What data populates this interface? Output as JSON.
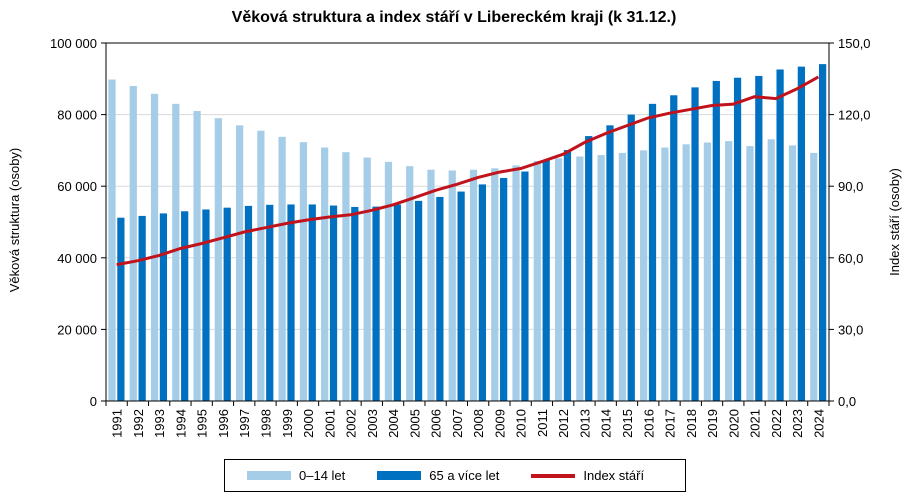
{
  "chart_data": {
    "type": "bar",
    "title": "Věková struktura a index stáří v Libereckém kraji (k 31.12.)",
    "ylabel": "Věková struktura (osoby)",
    "y2label": "Index stáří (osoby)",
    "ylim": [
      0,
      100000
    ],
    "y2lim": [
      0,
      150
    ],
    "yticks": [
      "0",
      "20 000",
      "40 000",
      "60 000",
      "80 000",
      "100 000"
    ],
    "y2ticks": [
      "0,0",
      "30,0",
      "60,0",
      "90,0",
      "120,0",
      "150,0"
    ],
    "categories": [
      "1991",
      "1992",
      "1993",
      "1994",
      "1995",
      "1996",
      "1997",
      "1998",
      "1999",
      "2000",
      "2001",
      "2002",
      "2003",
      "2004",
      "2005",
      "2006",
      "2007",
      "2008",
      "2009",
      "2010",
      "2011",
      "2012",
      "2013",
      "2014",
      "2015",
      "2016",
      "2017",
      "2018",
      "2019",
      "2020",
      "2021",
      "2022",
      "2023",
      "2024"
    ],
    "series": [
      {
        "name": "0–14 let",
        "type": "bar",
        "axis": "left",
        "color": "#a6cde7",
        "values": [
          89800,
          88000,
          85800,
          83000,
          81000,
          79000,
          77000,
          75500,
          73800,
          72300,
          70800,
          69500,
          68000,
          66800,
          65600,
          64600,
          64400,
          64600,
          65000,
          65800,
          67000,
          67800,
          68300,
          68700,
          69300,
          70000,
          70800,
          71700,
          72200,
          72600,
          71200,
          73100,
          71400,
          69300
        ]
      },
      {
        "name": "65 a více let",
        "type": "bar",
        "axis": "left",
        "color": "#0070c0",
        "values": [
          51200,
          51700,
          52400,
          53000,
          53500,
          54000,
          54500,
          54800,
          54900,
          54900,
          54600,
          54200,
          54300,
          54900,
          55900,
          57000,
          58500,
          60500,
          62300,
          64100,
          67200,
          70100,
          74000,
          77000,
          80000,
          83000,
          85400,
          87600,
          89400,
          90300,
          90800,
          92600,
          93400,
          94100
        ]
      },
      {
        "name": "Index stáří",
        "type": "line",
        "axis": "right",
        "color": "#c0131c",
        "values": [
          57.1,
          58.8,
          61.0,
          63.9,
          66.0,
          68.4,
          70.8,
          72.6,
          74.4,
          75.9,
          77.1,
          78.0,
          79.9,
          82.2,
          85.2,
          88.3,
          90.8,
          93.7,
          95.9,
          97.4,
          100.3,
          103.4,
          108.3,
          112.1,
          115.4,
          118.6,
          120.6,
          122.2,
          123.8,
          124.4,
          127.5,
          126.7,
          130.8,
          135.8
        ]
      }
    ],
    "legend_position": "bottom"
  }
}
